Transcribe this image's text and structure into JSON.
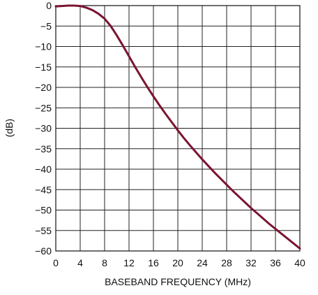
{
  "chart_data": {
    "type": "line",
    "xlabel": "BASEBAND FREQUENCY (MHz)",
    "ylabel": "(dB)",
    "xlim": [
      0,
      40
    ],
    "ylim": [
      -60,
      0
    ],
    "x_ticks": [
      0,
      4,
      8,
      12,
      16,
      20,
      24,
      28,
      32,
      36,
      40
    ],
    "y_ticks": [
      0,
      -5,
      -10,
      -15,
      -20,
      -25,
      -30,
      -35,
      -40,
      -45,
      -50,
      -55,
      -60
    ],
    "x_tick_labels": [
      "0",
      "4",
      "8",
      "12",
      "16",
      "20",
      "24",
      "28",
      "32",
      "36",
      "40"
    ],
    "y_tick_labels": [
      "0",
      "−5",
      "−10",
      "−15",
      "−20",
      "−25",
      "−30",
      "−35",
      "−40",
      "−45",
      "−50",
      "−55",
      "−60"
    ],
    "grid": true,
    "colors": {
      "series": "#7a1430",
      "grid": "#222222"
    },
    "series": [
      {
        "x": [
          0,
          1,
          2,
          3,
          4,
          5,
          6,
          7,
          8,
          9,
          10,
          11,
          12,
          13,
          14,
          15,
          16,
          17,
          18,
          19,
          20,
          21,
          22,
          23,
          24,
          25,
          26,
          27,
          28,
          29,
          30,
          31,
          32,
          33,
          34,
          35,
          36,
          37,
          38,
          39,
          40
        ],
        "y": [
          -0.2,
          -0.1,
          0,
          0,
          -0.1,
          -0.5,
          -1.1,
          -2.0,
          -3.2,
          -5.0,
          -7.3,
          -9.8,
          -12.4,
          -15.0,
          -17.5,
          -19.9,
          -22.2,
          -24.4,
          -26.5,
          -28.5,
          -30.5,
          -32.4,
          -34.2,
          -35.9,
          -37.6,
          -39.2,
          -40.8,
          -42.3,
          -43.8,
          -45.3,
          -46.7,
          -48.1,
          -49.5,
          -50.8,
          -52.1,
          -53.4,
          -54.6,
          -55.8,
          -57.0,
          -58.2,
          -59.4
        ]
      }
    ]
  }
}
